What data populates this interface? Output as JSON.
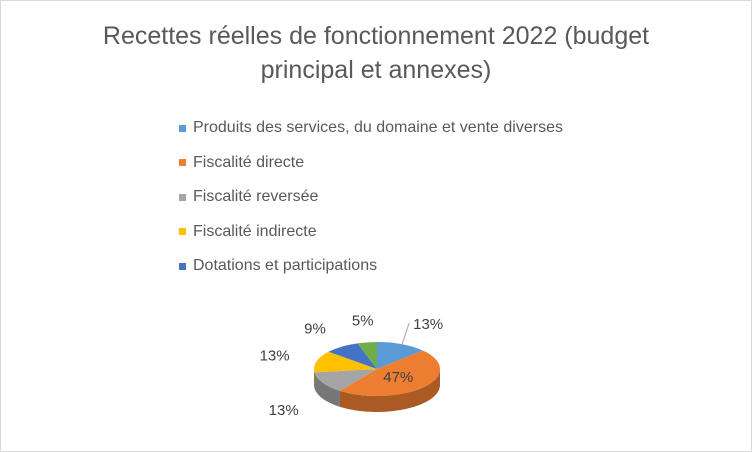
{
  "chart_data": {
    "type": "pie",
    "title": "Recettes réelles de fonctionnement  2022 (budget principal et annexes)",
    "title_lines": [
      "Recettes réelles de fonctionnement  2022 (budget",
      "principal et annexes)"
    ],
    "legend_position": "top",
    "categories": [
      "Produits des services, du domaine et vente diverses",
      "Fiscalité directe",
      "Fiscalité reversée",
      "Fiscalité indirecte",
      "Dotations et participations",
      ""
    ],
    "values": [
      13,
      47,
      13,
      13,
      9,
      5
    ],
    "data_labels": [
      "13%",
      "47%",
      "13%",
      "13%",
      "9%",
      "5%"
    ],
    "colors": [
      "#5B9BD5",
      "#ED7D31",
      "#A5A5A5",
      "#FFC000",
      "#4472C4",
      "#70AD47"
    ],
    "legend_shown": 5
  }
}
